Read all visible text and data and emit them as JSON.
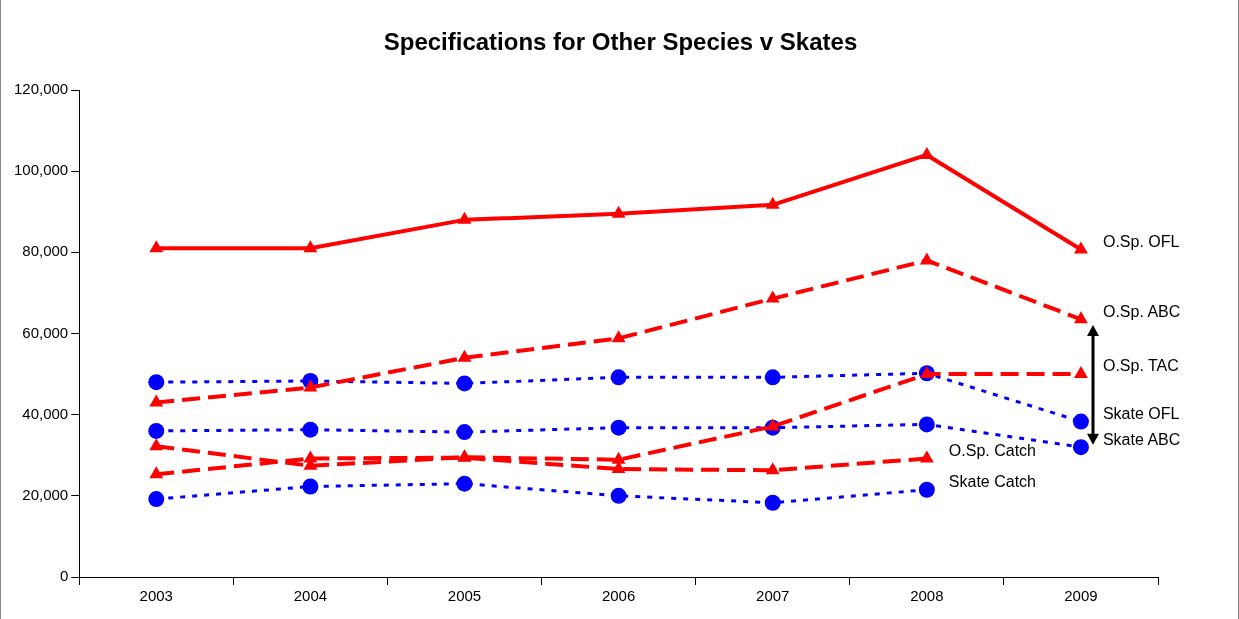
{
  "chart_data": {
    "type": "line",
    "title": "Specifications for Other Species v Skates",
    "categories": [
      "2003",
      "2004",
      "2005",
      "2006",
      "2007",
      "2008",
      "2009"
    ],
    "ylim": [
      0,
      120000
    ],
    "yticks": [
      {
        "value": 0,
        "label": "0"
      },
      {
        "value": 20000,
        "label": "20,000"
      },
      {
        "value": 40000,
        "label": "40,000"
      },
      {
        "value": 60000,
        "label": "60,000"
      },
      {
        "value": 80000,
        "label": "80,000"
      },
      {
        "value": 100000,
        "label": "100,000"
      },
      {
        "value": 120000,
        "label": "120,000"
      }
    ],
    "grid": false,
    "legend": false,
    "series": [
      {
        "name": "O.Sp. OFL",
        "color": "#ff0000",
        "marker": "triangle",
        "line_style": "solid",
        "values": [
          81000,
          81000,
          88000,
          89500,
          91700,
          104000,
          80700
        ]
      },
      {
        "name": "O.Sp. ABC",
        "color": "#ff0000",
        "marker": "triangle",
        "line_style": "dashed",
        "values": [
          43000,
          46700,
          54000,
          58800,
          68600,
          78000,
          63500
        ]
      },
      {
        "name": "O.Sp. TAC",
        "color": "#ff0000",
        "marker": "triangle",
        "line_style": "dashed",
        "values": [
          32200,
          27400,
          29500,
          28900,
          37100,
          50000,
          50000
        ]
      },
      {
        "name": "Skate OFL",
        "color": "#0000ff",
        "marker": "circle",
        "line_style": "dotted",
        "values": [
          48000,
          48300,
          47700,
          49200,
          49200,
          50200,
          38300
        ]
      },
      {
        "name": "Skate ABC",
        "color": "#0000ff",
        "marker": "circle",
        "line_style": "dotted",
        "values": [
          36000,
          36300,
          35700,
          36800,
          36800,
          37600,
          32000
        ]
      },
      {
        "name": "O.Sp. Catch",
        "color": "#ff0000",
        "marker": "triangle",
        "line_style": "dashed",
        "values": [
          25300,
          29200,
          29400,
          26600,
          26300,
          29200,
          null
        ]
      },
      {
        "name": "Skate Catch",
        "color": "#0000ff",
        "marker": "circle",
        "line_style": "dotted",
        "values": [
          19200,
          22300,
          23000,
          20000,
          18300,
          21500,
          null
        ]
      }
    ]
  }
}
